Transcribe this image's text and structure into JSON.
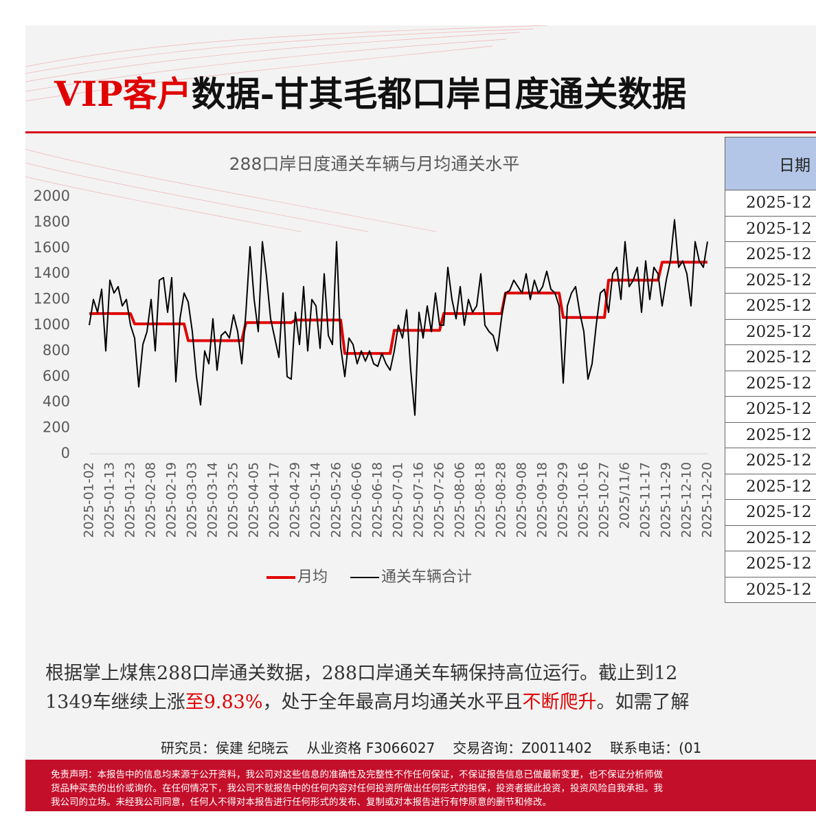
{
  "header": {
    "title_red": "VIP客户",
    "title_rest": "数据-甘其毛都口岸日度通关数据"
  },
  "chart_data": {
    "type": "line",
    "title": "288口岸日度通关车辆与月均通关水平",
    "legend": "bottom",
    "grid": false,
    "ylim": [
      0,
      2000
    ],
    "yticks": [
      0,
      200,
      400,
      600,
      800,
      1000,
      1200,
      1400,
      1600,
      1800,
      2000
    ],
    "categories": [
      "2025-01-02",
      null,
      null,
      null,
      null,
      "2025-01-13",
      null,
      null,
      null,
      null,
      "2025-01-23",
      null,
      null,
      null,
      null,
      "2025-02-08",
      null,
      null,
      null,
      null,
      "2025-02-19",
      null,
      null,
      null,
      null,
      "2025-03-03",
      null,
      null,
      null,
      null,
      "2025-03-14",
      null,
      null,
      null,
      null,
      "2025-03-25",
      null,
      null,
      null,
      null,
      "2025-04-05",
      null,
      null,
      null,
      null,
      "2025-04-17",
      null,
      null,
      null,
      null,
      "2025-04-29",
      null,
      null,
      null,
      null,
      "2025-05-14",
      null,
      null,
      null,
      null,
      "2025-05-26",
      null,
      null,
      null,
      null,
      "2025-06-06",
      null,
      null,
      null,
      null,
      "2025-06-18",
      null,
      null,
      null,
      null,
      "2025-07-01",
      null,
      null,
      null,
      null,
      "2025-07-16",
      null,
      null,
      null,
      null,
      "2025-07-26",
      null,
      null,
      null,
      null,
      "2025-08-06",
      null,
      null,
      null,
      null,
      "2025-08-18",
      null,
      null,
      null,
      null,
      "2025-08-28",
      null,
      null,
      null,
      null,
      "2025-09-08",
      null,
      null,
      null,
      null,
      "2025-09-18",
      null,
      null,
      null,
      null,
      "2025-09-29",
      null,
      null,
      null,
      null,
      "2025-10-16",
      null,
      null,
      null,
      null,
      "2025-10-27",
      null,
      null,
      null,
      null,
      "2025/11/6",
      null,
      null,
      null,
      null,
      "2025-11-17",
      null,
      null,
      null,
      null,
      "2025-11-29",
      null,
      null,
      null,
      null,
      "2025-12-10",
      null,
      null,
      null,
      null,
      "2025-12-20"
    ],
    "series": [
      {
        "name": "月均",
        "color": "#e00000",
        "values": [
          1090,
          1090,
          1090,
          1090,
          1090,
          1090,
          1090,
          1090,
          1090,
          1090,
          1090,
          1010,
          1010,
          1010,
          1010,
          1010,
          1010,
          1010,
          1010,
          1010,
          1010,
          1010,
          1010,
          1010,
          880,
          880,
          880,
          880,
          880,
          880,
          880,
          880,
          880,
          880,
          880,
          880,
          880,
          880,
          1020,
          1020,
          1020,
          1020,
          1020,
          1020,
          1020,
          1020,
          1020,
          1020,
          1020,
          1020,
          1040,
          1040,
          1040,
          1040,
          1040,
          1040,
          1040,
          1040,
          1040,
          1040,
          1040,
          1040,
          780,
          780,
          780,
          780,
          780,
          780,
          780,
          780,
          780,
          780,
          780,
          780,
          960,
          960,
          960,
          960,
          960,
          960,
          960,
          960,
          960,
          960,
          960,
          960,
          1090,
          1090,
          1090,
          1090,
          1090,
          1090,
          1090,
          1090,
          1090,
          1090,
          1090,
          1090,
          1090,
          1090,
          1090,
          1250,
          1250,
          1250,
          1250,
          1250,
          1250,
          1250,
          1250,
          1250,
          1250,
          1250,
          1250,
          1250,
          1250,
          1060,
          1060,
          1060,
          1060,
          1060,
          1060,
          1060,
          1060,
          1060,
          1060,
          1060,
          1350,
          1350,
          1350,
          1350,
          1350,
          1350,
          1350,
          1350,
          1350,
          1350,
          1350,
          1350,
          1350,
          1490,
          1490,
          1490,
          1490,
          1490,
          1490,
          1490,
          1490,
          1490,
          1490,
          1490,
          1490
        ]
      },
      {
        "name": "通关车辆合计",
        "color": "#000000",
        "values": [
          1000,
          1200,
          1100,
          1280,
          800,
          1350,
          1250,
          1300,
          1150,
          1200,
          1000,
          900,
          520,
          850,
          950,
          1200,
          800,
          1350,
          1370,
          1100,
          1370,
          560,
          1050,
          1250,
          1180,
          950,
          600,
          380,
          800,
          700,
          1050,
          650,
          920,
          950,
          900,
          1080,
          950,
          700,
          1100,
          1610,
          1200,
          950,
          1650,
          1380,
          1050,
          900,
          750,
          1250,
          600,
          580,
          1100,
          850,
          1300,
          800,
          1200,
          1150,
          820,
          1400,
          920,
          850,
          1650,
          830,
          600,
          900,
          850,
          700,
          800,
          720,
          800,
          700,
          680,
          780,
          700,
          650,
          800,
          1000,
          900,
          1120,
          650,
          300,
          1100,
          900,
          1150,
          950,
          1250,
          1000,
          1000,
          1450,
          1200,
          1050,
          1300,
          1000,
          1200,
          1100,
          1150,
          1400,
          1000,
          950,
          920,
          800,
          1050,
          1250,
          1270,
          1350,
          1300,
          1250,
          1400,
          1200,
          1350,
          1250,
          1300,
          1420,
          1280,
          1250,
          1150,
          550,
          1150,
          1250,
          1300,
          1100,
          950,
          580,
          700,
          1000,
          1250,
          1280,
          1100,
          1400,
          1450,
          1200,
          1650,
          1300,
          1350,
          1450,
          1100,
          1500,
          1200,
          1450,
          1400,
          1150,
          1350,
          1500,
          1820,
          1450,
          1500,
          1400,
          1150,
          1650,
          1500,
          1450,
          1650
        ]
      }
    ]
  },
  "table": {
    "header": "日期",
    "rows": [
      "2025-12",
      "2025-12",
      "2025-12",
      "2025-12",
      "2025-12",
      "2025-12",
      "2025-12",
      "2025-12",
      "2025-12",
      "2025-12",
      "2025-12",
      "2025-12",
      "2025-12",
      "2025-12",
      "2025-12",
      "2025-12"
    ]
  },
  "text": {
    "line1": "根据掌上煤焦288口岸通关数据，288口岸通关车辆保持高位运行。截止到12",
    "line2": [
      "1349车继续上涨",
      "至9.83%",
      "，处于全年最高月均通关水平且",
      "不断爬升",
      "。如需了解"
    ]
  },
  "footer": {
    "researcher": "研究员：侯建 纪晓云",
    "license": "从业资格 F3066027",
    "consult": "交易咨询：Z0011402",
    "phone": "联系电话：(01"
  },
  "disclaimer": [
    "免责声明：本报告中的信息均来源于公开资料，我公司对这些信息的准确性及完整性不作任何保证，不保证报告信息已做最新变更，也不保证分析师做",
    "货品种买卖的出价或询价。在任何情况下，我公司不就报告中的任何内容对任何投资所做出任何形式的担保，投资者据此投资，投资风险自我承担。我",
    "我公司的立场。未经我公司同意，任何人不得对本报告进行任何形式的发布、复制或对本报告进行有悖原意的删节和修改。"
  ]
}
